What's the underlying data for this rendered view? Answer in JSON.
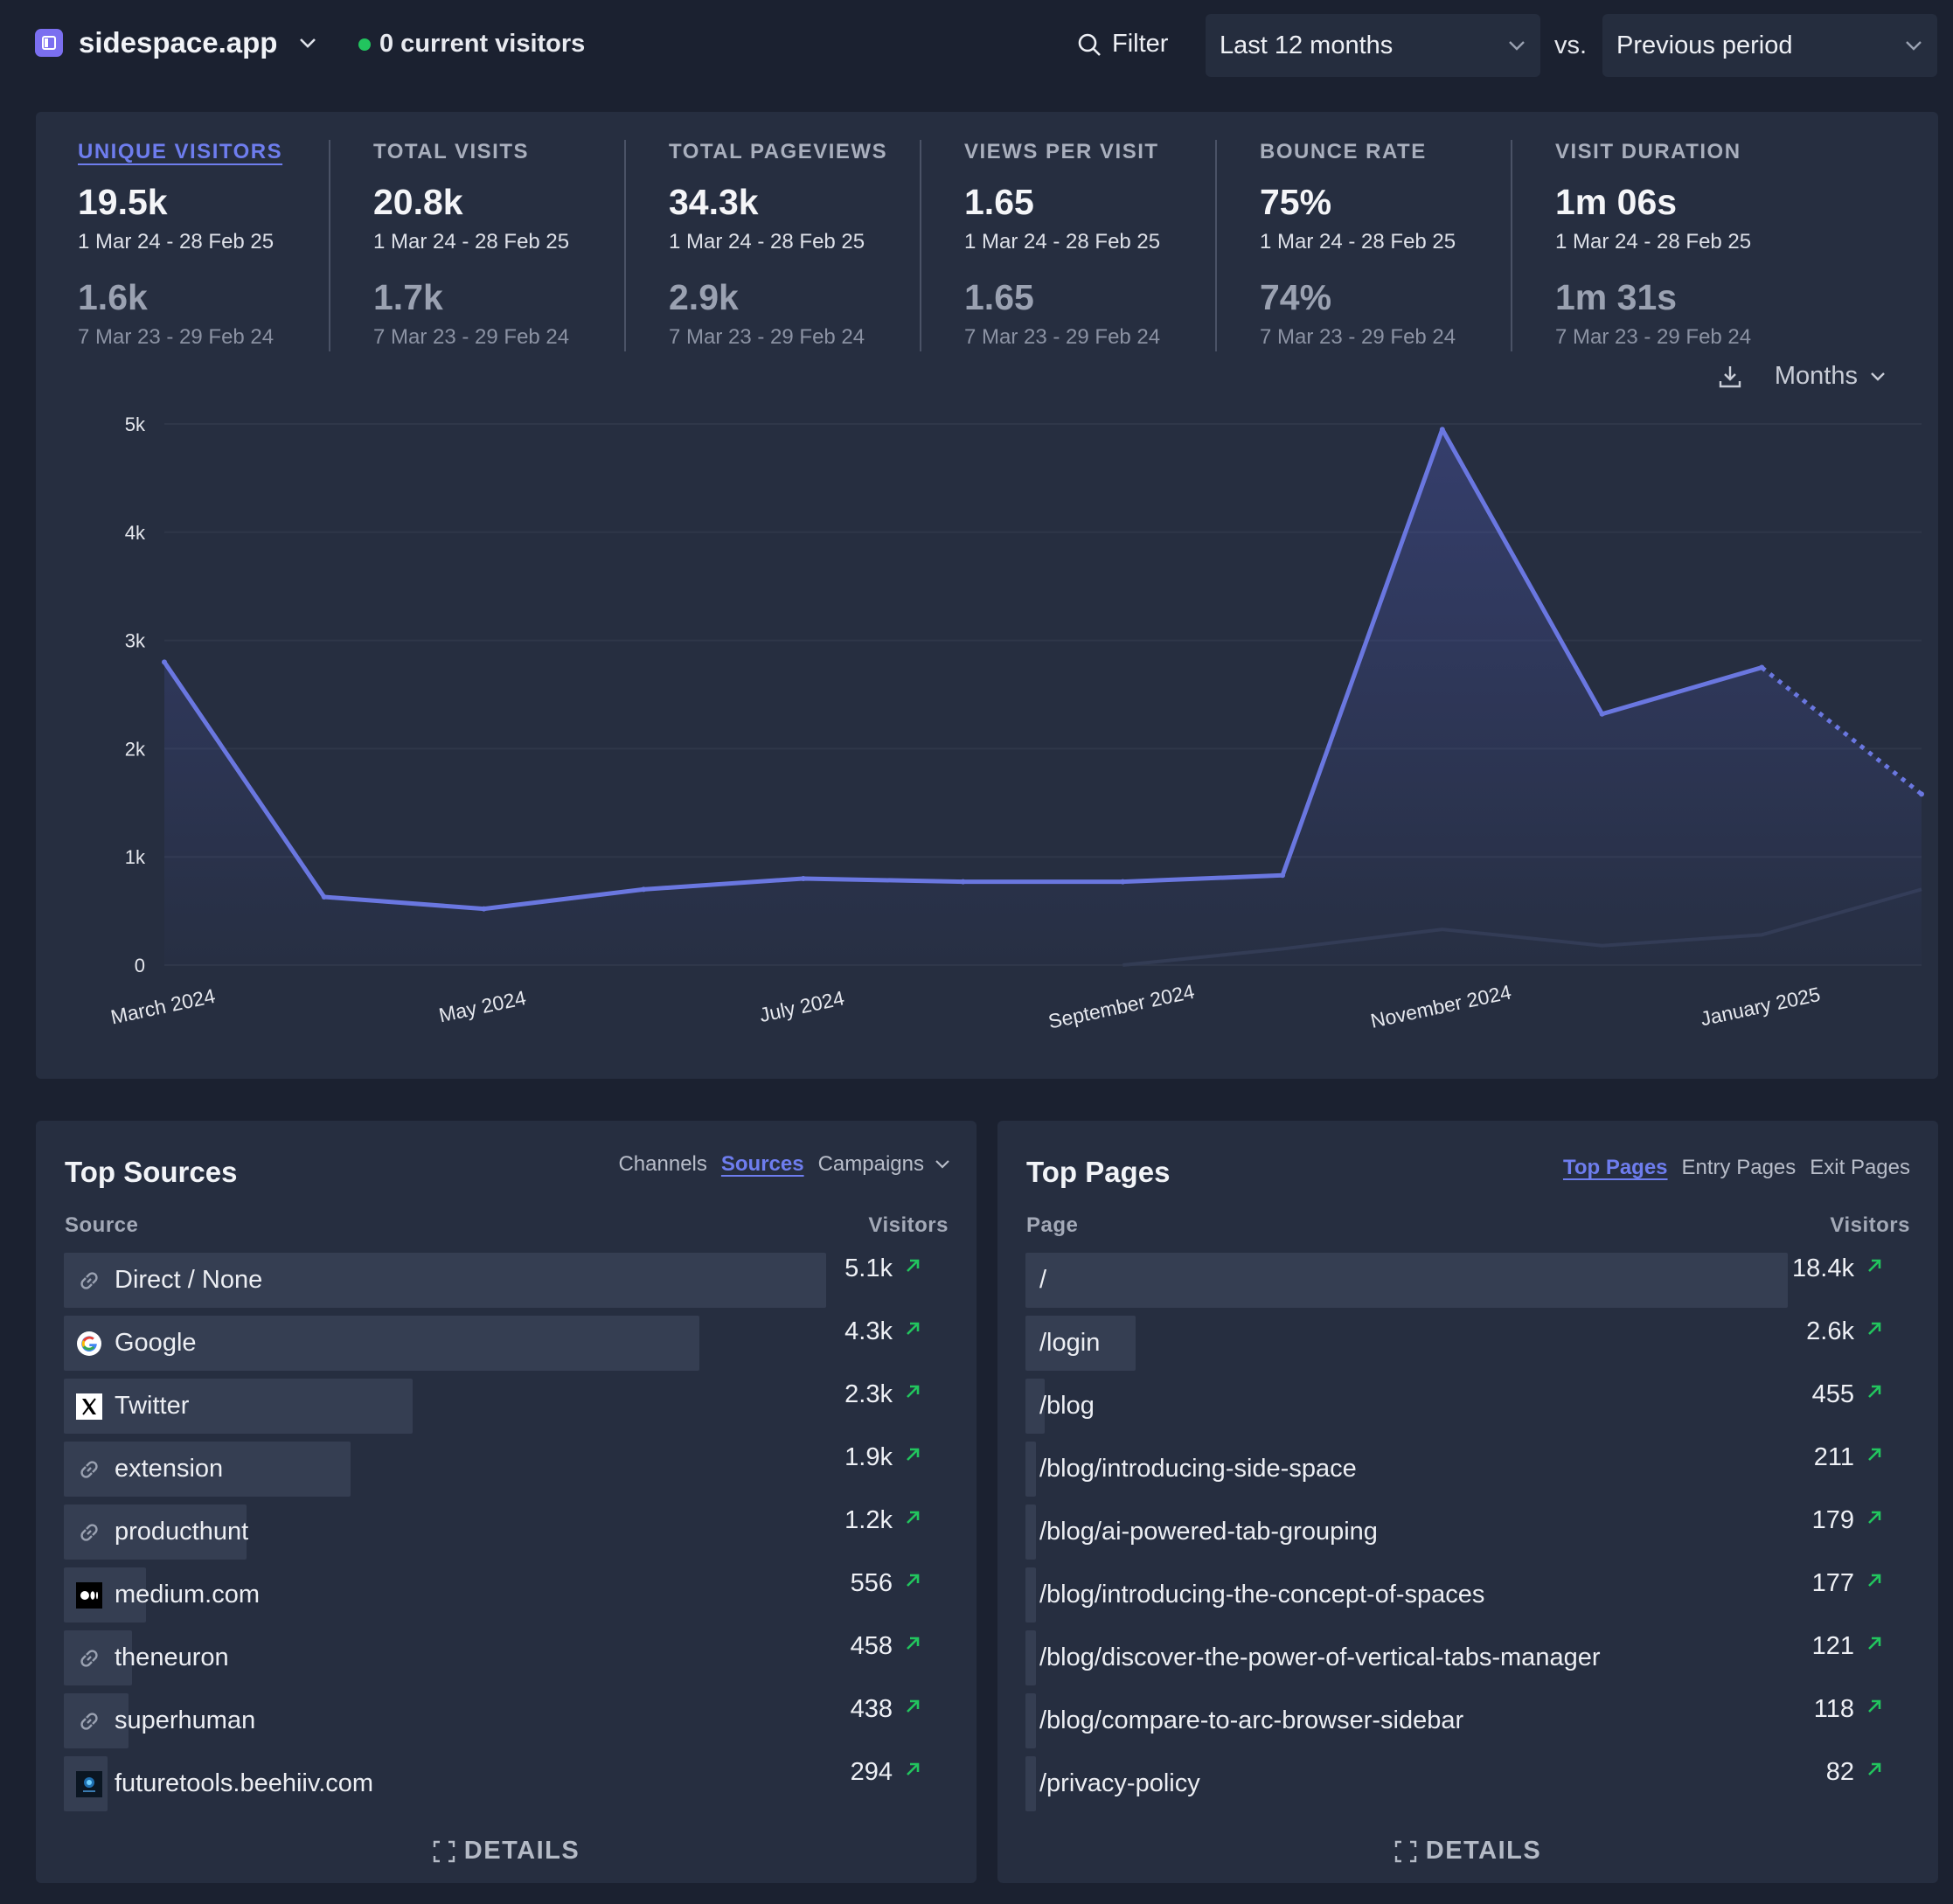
{
  "header": {
    "site_name": "sidespace.app",
    "live_visitors": "0 current visitors",
    "filter_label": "Filter",
    "period": "Last 12 months",
    "vs": "vs.",
    "comparison": "Previous period"
  },
  "metrics": [
    {
      "label": "UNIQUE VISITORS",
      "value": "19.5k",
      "range": "1 Mar 24 - 28 Feb 25",
      "prev_value": "1.6k",
      "prev_range": "7 Mar 23 - 29 Feb 24"
    },
    {
      "label": "TOTAL VISITS",
      "value": "20.8k",
      "range": "1 Mar 24 - 28 Feb 25",
      "prev_value": "1.7k",
      "prev_range": "7 Mar 23 - 29 Feb 24"
    },
    {
      "label": "TOTAL PAGEVIEWS",
      "value": "34.3k",
      "range": "1 Mar 24 - 28 Feb 25",
      "prev_value": "2.9k",
      "prev_range": "7 Mar 23 - 29 Feb 24"
    },
    {
      "label": "VIEWS PER VISIT",
      "value": "1.65",
      "range": "1 Mar 24 - 28 Feb 25",
      "prev_value": "1.65",
      "prev_range": "7 Mar 23 - 29 Feb 24"
    },
    {
      "label": "BOUNCE RATE",
      "value": "75%",
      "range": "1 Mar 24 - 28 Feb 25",
      "prev_value": "74%",
      "prev_range": "7 Mar 23 - 29 Feb 24"
    },
    {
      "label": "VISIT DURATION",
      "value": "1m 06s",
      "range": "1 Mar 24 - 28 Feb 25",
      "prev_value": "1m 31s",
      "prev_range": "7 Mar 23 - 29 Feb 24"
    }
  ],
  "chart_tools": {
    "interval": "Months",
    "download_icon": "download-icon"
  },
  "chart_data": {
    "type": "line",
    "y_ticks": [
      "5k",
      "4k",
      "3k",
      "2k",
      "1k",
      "0"
    ],
    "ylim": [
      0,
      5000
    ],
    "x_tick_labels": [
      "March 2024",
      "May 2024",
      "July 2024",
      "September 2024",
      "November 2024",
      "January 2025"
    ],
    "x_tick_indices": [
      0,
      2,
      4,
      6,
      8,
      10
    ],
    "series": [
      {
        "values": [
          2800,
          630,
          520,
          700,
          800,
          770,
          770,
          830,
          4950,
          2320,
          2750,
          1580
        ],
        "color": "#6a77e0",
        "dashed_from_index": 10
      },
      {
        "values": [
          null,
          null,
          null,
          null,
          null,
          null,
          0,
          150,
          330,
          180,
          280,
          700
        ],
        "color": "#323b52"
      }
    ],
    "grid": true,
    "colors": {
      "line": "#6a77e0",
      "previous": "#323b52",
      "grid": "#2f3749"
    }
  },
  "top_sources": {
    "title": "Top Sources",
    "tabs": [
      "Channels",
      "Sources",
      "Campaigns"
    ],
    "active_tab": "Sources",
    "col_source": "Source",
    "col_visitors": "Visitors",
    "rows": [
      {
        "label": "Direct / None",
        "value": "5.1k",
        "icon": "link-icon",
        "fraction": 1.0
      },
      {
        "label": "Google",
        "value": "4.3k",
        "icon": "google-icon",
        "fraction": 0.834
      },
      {
        "label": "Twitter",
        "value": "2.3k",
        "icon": "x-icon",
        "fraction": 0.458
      },
      {
        "label": "extension",
        "value": "1.9k",
        "icon": "link-icon",
        "fraction": 0.376
      },
      {
        "label": "producthunt",
        "value": "1.2k",
        "icon": "link-icon",
        "fraction": 0.24
      },
      {
        "label": "medium.com",
        "value": "556",
        "icon": "medium-icon",
        "fraction": 0.108
      },
      {
        "label": "theneuron",
        "value": "458",
        "icon": "link-icon",
        "fraction": 0.089
      },
      {
        "label": "superhuman",
        "value": "438",
        "icon": "link-icon",
        "fraction": 0.085
      },
      {
        "label": "futuretools.beehiiv.com",
        "value": "294",
        "icon": "futuretools-icon",
        "fraction": 0.057
      }
    ],
    "details": "DETAILS"
  },
  "top_pages": {
    "title": "Top Pages",
    "tabs": [
      "Top Pages",
      "Entry Pages",
      "Exit Pages"
    ],
    "active_tab": "Top Pages",
    "col_page": "Page",
    "col_visitors": "Visitors",
    "rows": [
      {
        "label": "/",
        "value": "18.4k",
        "fraction": 1.0
      },
      {
        "label": "/login",
        "value": "2.6k",
        "fraction": 0.144
      },
      {
        "label": "/blog",
        "value": "455",
        "fraction": 0.025
      },
      {
        "label": "/blog/introducing-side-space",
        "value": "211",
        "fraction": 0.012
      },
      {
        "label": "/blog/ai-powered-tab-grouping",
        "value": "179",
        "fraction": 0.01
      },
      {
        "label": "/blog/introducing-the-concept-of-spaces",
        "value": "177",
        "fraction": 0.01
      },
      {
        "label": "/blog/discover-the-power-of-vertical-tabs-manager",
        "value": "121",
        "fraction": 0.007
      },
      {
        "label": "/blog/compare-to-arc-browser-sidebar",
        "value": "118",
        "fraction": 0.006
      },
      {
        "label": "/privacy-policy",
        "value": "82",
        "fraction": 0.005
      }
    ],
    "details": "DETAILS"
  }
}
